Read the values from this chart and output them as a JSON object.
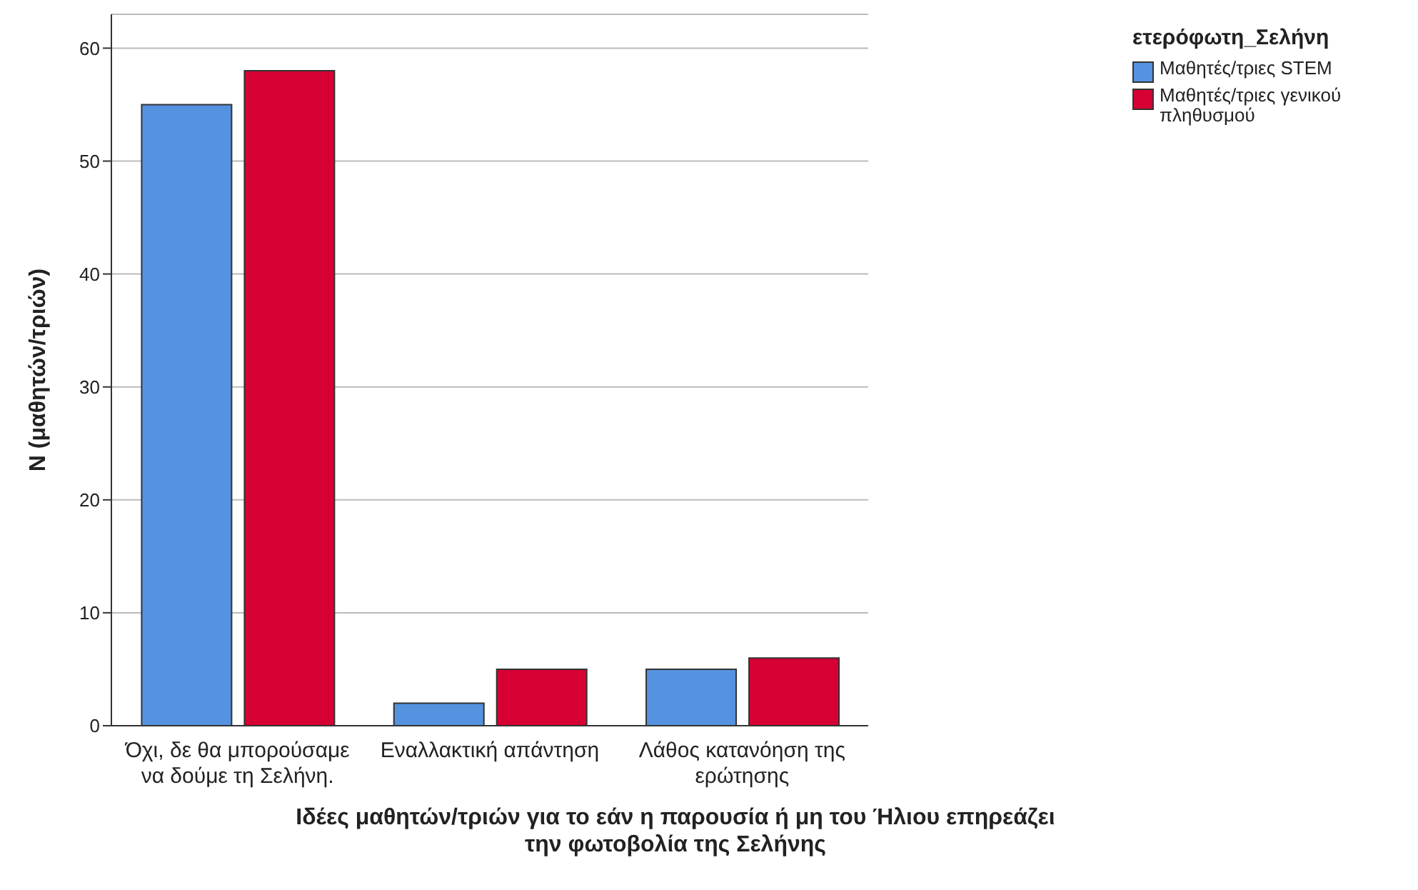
{
  "chart_data": {
    "type": "bar",
    "xlabel": "Ιδέες μαθητών/τριών για το εάν η παρουσία ή μη του Ήλιου επηρεάζει την φωτοβολία της Σελήνης",
    "ylabel": "N (μαθητών/τριών)",
    "legend_title": "ετερόφωτη_Σελήνη",
    "categories": [
      "Όχι, δε θα μπορούσαμε να δούμε τη Σελήνη.",
      "Εναλλακτική απάντηση",
      "Λάθος κατανόηση της ερώτησης"
    ],
    "series": [
      {
        "name": "Μαθητές/τριες STEM",
        "color": "#5592e0",
        "values": [
          55,
          2,
          5
        ]
      },
      {
        "name": "Μαθητές/τριες γενικού πληθυσμού",
        "color": "#d70033",
        "values": [
          58,
          5,
          6
        ]
      }
    ],
    "ylim": [
      0,
      63
    ],
    "yticks": [
      0,
      10,
      20,
      30,
      40,
      50,
      60
    ],
    "grid": "y",
    "legend": "top right"
  }
}
